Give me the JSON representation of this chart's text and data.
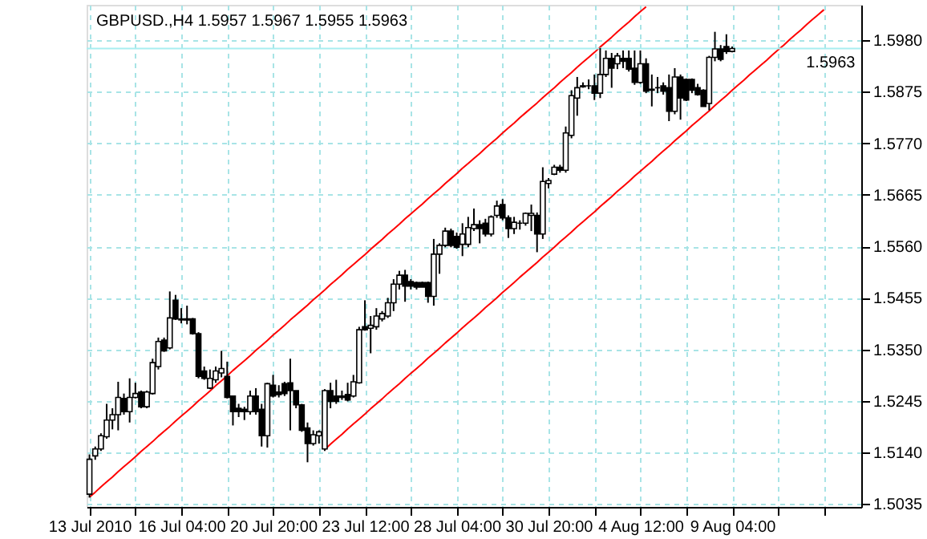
{
  "chart_data": {
    "type": "candlestick",
    "title": "GBPUSD.,H4  1.5957 1.5967 1.5955 1.5963",
    "categories": [
      "13 Jul 2010",
      null,
      null,
      null,
      null,
      null,
      null,
      null,
      null,
      null,
      null,
      null,
      null,
      null,
      null,
      null,
      "16 Jul 04:00",
      null,
      null,
      null,
      null,
      null,
      null,
      null,
      null,
      null,
      null,
      null,
      null,
      null,
      null,
      null,
      "20 Jul 20:00",
      null,
      null,
      null,
      null,
      null,
      null,
      null,
      null,
      null,
      null,
      null,
      null,
      null,
      null,
      null,
      "23 Jul 12:00",
      null,
      null,
      null,
      null,
      null,
      null,
      null,
      null,
      null,
      null,
      null,
      null,
      null,
      null,
      null,
      "28 Jul 04:00",
      null,
      null,
      null,
      null,
      null,
      null,
      null,
      null,
      null,
      null,
      null,
      null,
      null,
      null,
      null,
      "30 Jul 20:00",
      null,
      null,
      null,
      null,
      null,
      null,
      null,
      null,
      null,
      null,
      null,
      null,
      null,
      null,
      null,
      "4 Aug 12:00",
      null,
      null,
      null,
      null,
      null,
      null,
      null,
      null,
      null,
      null,
      null,
      null,
      null,
      null,
      null,
      "9 Aug 04:00",
      null,
      null,
      null,
      null,
      null,
      null,
      null,
      null,
      null,
      null,
      null,
      null,
      null,
      null,
      null,
      null,
      null,
      null,
      null,
      null,
      null,
      null
    ],
    "ohlc": [
      [
        1.5055,
        1.5136,
        1.5048,
        1.5126
      ],
      [
        1.5133,
        1.5152,
        1.5125,
        1.5147
      ],
      [
        1.5147,
        1.5179,
        1.5143,
        1.5174
      ],
      [
        1.5172,
        1.5239,
        1.5168,
        1.5206
      ],
      [
        1.5206,
        1.523,
        1.5187,
        1.5217
      ],
      [
        1.5217,
        1.5284,
        1.5185,
        1.5252
      ],
      [
        1.525,
        1.526,
        1.5217,
        1.5223
      ],
      [
        1.5223,
        1.5291,
        1.5201,
        1.5252
      ],
      [
        1.5252,
        1.5282,
        1.525,
        1.526
      ],
      [
        1.5263,
        1.5266,
        1.523,
        1.5233
      ],
      [
        1.5233,
        1.5266,
        1.523,
        1.5263
      ],
      [
        1.526,
        1.5331,
        1.5258,
        1.5323
      ],
      [
        1.5315,
        1.5374,
        1.5309,
        1.5366
      ],
      [
        1.5369,
        1.5374,
        1.5345,
        1.5347
      ],
      [
        1.5353,
        1.5468,
        1.535,
        1.5414
      ],
      [
        1.545,
        1.5461,
        1.541,
        1.5412
      ],
      [
        1.5412,
        1.5434,
        1.5403,
        1.541
      ],
      [
        1.541,
        1.5439,
        1.5401,
        1.5412
      ],
      [
        1.5412,
        1.5414,
        1.538,
        1.5382
      ],
      [
        1.5382,
        1.5385,
        1.5291,
        1.5295
      ],
      [
        1.5306,
        1.5315,
        1.5288,
        1.5291
      ],
      [
        1.5271,
        1.5309,
        1.5269,
        1.5291
      ],
      [
        1.5288,
        1.5315,
        1.5282,
        1.5306
      ],
      [
        1.5302,
        1.5347,
        1.5293,
        1.5311
      ],
      [
        1.5295,
        1.5325,
        1.525,
        1.5252
      ],
      [
        1.5255,
        1.5255,
        1.5195,
        1.5223
      ],
      [
        1.523,
        1.5239,
        1.5212,
        1.5223
      ],
      [
        1.5228,
        1.5233,
        1.5206,
        1.5223
      ],
      [
        1.5223,
        1.5266,
        1.5217,
        1.5255
      ],
      [
        1.5255,
        1.5271,
        1.5217,
        1.5223
      ],
      [
        1.5228,
        1.5239,
        1.5152,
        1.5174
      ],
      [
        1.5174,
        1.5282,
        1.515,
        1.528
      ],
      [
        1.5277,
        1.5298,
        1.5252,
        1.5255
      ],
      [
        1.5263,
        1.5277,
        1.5252,
        1.5258
      ],
      [
        1.528,
        1.5284,
        1.5255,
        1.526
      ],
      [
        1.5282,
        1.5331,
        1.5185,
        1.5266
      ],
      [
        1.5266,
        1.5266,
        1.523,
        1.5237
      ],
      [
        1.5237,
        1.5239,
        1.5182,
        1.5185
      ],
      [
        1.519,
        1.5201,
        1.512,
        1.5158
      ],
      [
        1.5158,
        1.5185,
        1.5154,
        1.5176
      ],
      [
        1.5174,
        1.5185,
        1.5158,
        1.5182
      ],
      [
        1.5147,
        1.5269,
        1.5143,
        1.5266
      ],
      [
        1.5266,
        1.5282,
        1.523,
        1.5244
      ],
      [
        1.5255,
        1.5288,
        1.5239,
        1.5244
      ],
      [
        1.5255,
        1.5266,
        1.5247,
        1.5252
      ],
      [
        1.5258,
        1.5282,
        1.5244,
        1.5247
      ],
      [
        1.5255,
        1.5298,
        1.5252,
        1.5284
      ],
      [
        1.5282,
        1.5396,
        1.528,
        1.539
      ],
      [
        1.5396,
        1.545,
        1.5388,
        1.539
      ],
      [
        1.5393,
        1.5418,
        1.5342,
        1.5399
      ],
      [
        1.5396,
        1.5434,
        1.539,
        1.5418
      ],
      [
        1.5412,
        1.5428,
        1.5407,
        1.5423
      ],
      [
        1.5418,
        1.5455,
        1.5414,
        1.5445
      ],
      [
        1.5445,
        1.5493,
        1.5428,
        1.5483
      ],
      [
        1.5483,
        1.551,
        1.5472,
        1.5501
      ],
      [
        1.5501,
        1.5512,
        1.5447,
        1.5479
      ],
      [
        1.5488,
        1.5493,
        1.5472,
        1.5479
      ],
      [
        1.5486,
        1.5488,
        1.5472,
        1.5477
      ],
      [
        1.5486,
        1.5488,
        1.5477,
        1.5477
      ],
      [
        1.5486,
        1.5488,
        1.5445,
        1.5458
      ],
      [
        1.5458,
        1.5575,
        1.5439,
        1.5544
      ],
      [
        1.5544,
        1.5566,
        1.5504,
        1.5562
      ],
      [
        1.5562,
        1.5598,
        1.5558,
        1.5591
      ],
      [
        1.5591,
        1.5596,
        1.5558,
        1.5562
      ],
      [
        1.558,
        1.5588,
        1.5555,
        1.5558
      ],
      [
        1.5564,
        1.5607,
        1.554,
        1.5585
      ],
      [
        1.5564,
        1.562,
        1.5558,
        1.5598
      ],
      [
        1.5596,
        1.5637,
        1.5591,
        1.5604
      ],
      [
        1.5604,
        1.5613,
        1.5566,
        1.5596
      ],
      [
        1.5607,
        1.5616,
        1.558,
        1.5585
      ],
      [
        1.5585,
        1.5623,
        1.558,
        1.562
      ],
      [
        1.5623,
        1.5653,
        1.5618,
        1.5642
      ],
      [
        1.5645,
        1.5656,
        1.5613,
        1.5618
      ],
      [
        1.5618,
        1.5623,
        1.5577,
        1.5596
      ],
      [
        1.5596,
        1.562,
        1.5585,
        1.5609
      ],
      [
        1.5607,
        1.5613,
        1.5594,
        1.5607
      ],
      [
        1.5607,
        1.5629,
        1.5602,
        1.5627
      ],
      [
        1.5623,
        1.5645,
        1.5591,
        1.5627
      ],
      [
        1.5623,
        1.5629,
        1.5548,
        1.5585
      ],
      [
        1.5585,
        1.5721,
        1.5575,
        1.5692
      ],
      [
        1.5688,
        1.5699,
        1.5678,
        1.5694
      ],
      [
        1.5707,
        1.5726,
        1.5705,
        1.5721
      ],
      [
        1.5721,
        1.5726,
        1.571,
        1.5715
      ],
      [
        1.5715,
        1.5804,
        1.571,
        1.5791
      ],
      [
        1.5786,
        1.5878,
        1.578,
        1.5867
      ],
      [
        1.5862,
        1.5905,
        1.5826,
        1.5883
      ],
      [
        1.5885,
        1.5894,
        1.5883,
        1.5887
      ],
      [
        1.5887,
        1.59,
        1.588,
        1.5887
      ],
      [
        1.5887,
        1.591,
        1.5858,
        1.5872
      ],
      [
        1.5872,
        1.5964,
        1.5862,
        1.591
      ],
      [
        1.591,
        1.5959,
        1.5905,
        1.5943
      ],
      [
        1.5943,
        1.5954,
        1.5883,
        1.5923
      ],
      [
        1.5932,
        1.5954,
        1.5921,
        1.5948
      ],
      [
        1.5943,
        1.5959,
        1.5923,
        1.5937
      ],
      [
        1.5943,
        1.5959,
        1.5916,
        1.5921
      ],
      [
        1.5923,
        1.5959,
        1.5889,
        1.5894
      ],
      [
        1.5894,
        1.5959,
        1.5891,
        1.5932
      ],
      [
        1.5932,
        1.5943,
        1.5872,
        1.5876
      ],
      [
        1.5878,
        1.591,
        1.5845,
        1.588
      ],
      [
        1.5883,
        1.5905,
        1.5872,
        1.5883
      ],
      [
        1.5887,
        1.5894,
        1.5869,
        1.5876
      ],
      [
        1.5883,
        1.591,
        1.5815,
        1.5835
      ],
      [
        1.5835,
        1.5923,
        1.5829,
        1.5905
      ],
      [
        1.5905,
        1.591,
        1.5818,
        1.5862
      ],
      [
        1.59,
        1.5902,
        1.5856,
        1.5858
      ],
      [
        1.59,
        1.5902,
        1.5872,
        1.5878
      ],
      [
        1.5883,
        1.5891,
        1.5867,
        1.5869
      ],
      [
        1.5878,
        1.588,
        1.5845,
        1.5845
      ],
      [
        1.5851,
        1.5948,
        1.5837,
        1.5945
      ],
      [
        1.5945,
        1.5997,
        1.5937,
        1.5962
      ],
      [
        1.5962,
        1.597,
        1.5937,
        1.5941
      ],
      [
        1.5967,
        1.5992,
        1.5952,
        1.5957
      ],
      [
        1.5957,
        1.5967,
        1.5955,
        1.5963
      ],
      null,
      null,
      null,
      null,
      null,
      null,
      null,
      null,
      null,
      null,
      null,
      null,
      null,
      null,
      null,
      null,
      null,
      null,
      null,
      null,
      null,
      null
    ],
    "series": [
      {
        "type": "line",
        "color": "#ff0000",
        "values": [
          1.5049,
          1.5059,
          1.507,
          1.508,
          1.509,
          1.5101,
          1.5111,
          1.5121,
          1.5131,
          1.5142,
          1.5152,
          1.5162,
          1.5173,
          1.5183,
          1.5193,
          1.5204,
          1.5214,
          1.5224,
          1.5234,
          1.5245,
          1.5255,
          1.5265,
          1.5276,
          1.5286,
          1.5296,
          1.5307,
          1.5317,
          1.5327,
          1.5337,
          1.5348,
          1.5358,
          1.5368,
          1.5379,
          1.5389,
          1.5399,
          1.541,
          1.542,
          1.543,
          1.544,
          1.5451,
          1.5461,
          1.5471,
          1.5482,
          1.5492,
          1.5502,
          1.5513,
          1.5523,
          1.5533,
          1.5543,
          1.5554,
          1.5564,
          1.5574,
          1.5585,
          1.5595,
          1.5605,
          1.5616,
          1.5626,
          1.5636,
          1.5646,
          1.5657,
          1.5667,
          1.5677,
          1.5688,
          1.5698,
          1.5708,
          1.5719,
          1.5729,
          1.5739,
          1.5749,
          1.576,
          1.577,
          1.578,
          1.5791,
          1.5801,
          1.5811,
          1.5822,
          1.5832,
          1.5842,
          1.5852,
          1.5863,
          1.5873,
          1.5883,
          1.5894,
          1.5904,
          1.5914,
          1.5925,
          1.5935,
          1.5945,
          1.5955,
          1.5966,
          1.5976,
          1.5986,
          1.5997,
          1.6007,
          1.6017,
          1.6028,
          1.6038,
          1.6048,
          null,
          null,
          null,
          null,
          null,
          null,
          null,
          null,
          null,
          null,
          null,
          null,
          null,
          null,
          null,
          null,
          null,
          null,
          null,
          null,
          null,
          null,
          null,
          null,
          null,
          null,
          null,
          null,
          null,
          null,
          null,
          null,
          null,
          null,
          null,
          null,
          null
        ]
      },
      {
        "type": "line",
        "color": "#ff0000",
        "values": [
          null,
          null,
          null,
          null,
          null,
          null,
          null,
          null,
          null,
          null,
          null,
          null,
          null,
          null,
          null,
          null,
          null,
          null,
          null,
          null,
          null,
          null,
          null,
          null,
          null,
          null,
          null,
          null,
          null,
          null,
          null,
          null,
          null,
          null,
          null,
          null,
          null,
          null,
          null,
          null,
          null,
          1.5146,
          1.5157,
          1.5167,
          1.5177,
          1.5188,
          1.5198,
          1.5208,
          1.5218,
          1.5229,
          1.5239,
          1.5249,
          1.526,
          1.527,
          1.528,
          1.5291,
          1.5301,
          1.5311,
          1.5321,
          1.5332,
          1.5342,
          1.5352,
          1.5363,
          1.5373,
          1.5383,
          1.5394,
          1.5404,
          1.5414,
          1.5424,
          1.5435,
          1.5445,
          1.5455,
          1.5466,
          1.5476,
          1.5486,
          1.5497,
          1.5507,
          1.5517,
          1.5527,
          1.5538,
          1.5548,
          1.5558,
          1.5569,
          1.5579,
          1.5589,
          1.56,
          1.561,
          1.562,
          1.563,
          1.5641,
          1.5651,
          1.5661,
          1.5672,
          1.5682,
          1.5692,
          1.5703,
          1.5713,
          1.5723,
          1.5733,
          1.5744,
          1.5754,
          1.5764,
          1.5775,
          1.5785,
          1.5795,
          1.5806,
          1.5816,
          1.5826,
          1.5836,
          1.5847,
          1.5857,
          1.5867,
          1.5878,
          1.5888,
          1.5898,
          1.5909,
          1.5919,
          1.5929,
          1.5939,
          1.595,
          1.596,
          1.597,
          1.5981,
          1.5991,
          1.6001,
          1.6012,
          1.6022,
          1.6032,
          1.6042,
          null,
          null,
          null,
          null,
          null,
          null
        ]
      }
    ],
    "ylim": [
      1.5029,
      1.6052
    ],
    "yticks": [
      1.5035,
      {
        "value": 1.514,
        "label": "1.5140"
      },
      1.5245,
      {
        "value": 1.535,
        "label": "1.5350"
      },
      1.5455,
      {
        "value": 1.556,
        "label": "1.5560"
      },
      1.5665,
      {
        "value": 1.577,
        "label": "1.5770"
      },
      1.5875,
      {
        "value": 1.598,
        "label": "1.5980"
      }
    ],
    "ref_lines": [
      {
        "axis": "y",
        "value": 1.5963,
        "label": "1.5963",
        "color": "#a8eef0"
      }
    ],
    "grid": true
  }
}
